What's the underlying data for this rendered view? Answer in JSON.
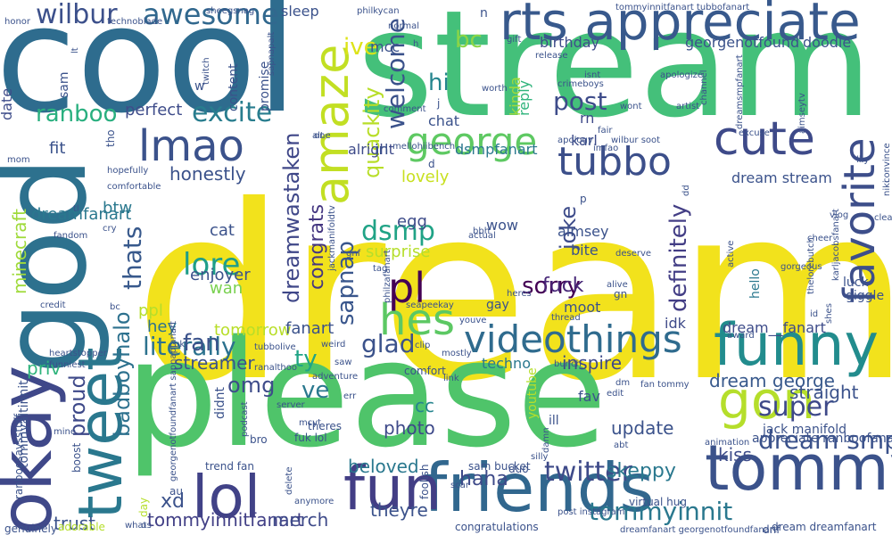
{
  "words": [
    {
      "text": "dream",
      "color": "#f2e21c"
    },
    {
      "text": "stream",
      "color": "#44c07a"
    },
    {
      "text": "cool",
      "color": "#2e6c8e"
    },
    {
      "text": "please",
      "color": "#4fc46a"
    },
    {
      "text": "god",
      "color": "#2d718e"
    },
    {
      "text": "rts appreciate",
      "color": "#38598c"
    },
    {
      "text": "funny",
      "color": "#228c8d"
    },
    {
      "text": "friends",
      "color": "#31678e"
    },
    {
      "text": "tommy",
      "color": "#3b528b"
    },
    {
      "text": "fun",
      "color": "#433e85"
    },
    {
      "text": "lol",
      "color": "#414287"
    },
    {
      "text": "okay",
      "color": "#3f4889"
    },
    {
      "text": "tweet",
      "color": "#2a788e"
    },
    {
      "text": "lmao",
      "color": "#3b528b"
    },
    {
      "text": "cute",
      "color": "#3e4a89"
    },
    {
      "text": "amaze",
      "color": "#c2df23"
    },
    {
      "text": "favorite",
      "color": "#3d4e8a"
    },
    {
      "text": "videothings",
      "color": "#2f6b8e"
    },
    {
      "text": "george",
      "color": "#5ec962"
    },
    {
      "text": "tubbo",
      "color": "#3c4f8a"
    },
    {
      "text": "gon",
      "color": "#b5de2b"
    },
    {
      "text": "hes",
      "color": "#5cc863"
    },
    {
      "text": "pl",
      "color": "#440154"
    },
    {
      "text": "awesome",
      "color": "#31688e"
    },
    {
      "text": "wilbur",
      "color": "#3c508b"
    },
    {
      "text": "welcome",
      "color": "#3b528b"
    },
    {
      "text": "excite",
      "color": "#287d8e"
    },
    {
      "text": "ranboo",
      "color": "#29af7f"
    },
    {
      "text": "dream smp",
      "color": "#3b528b"
    },
    {
      "text": "twitter",
      "color": "#3e4a89"
    },
    {
      "text": "tommyinnit",
      "color": "#2a788e"
    },
    {
      "text": "literally",
      "color": "#2c728e"
    },
    {
      "text": "super",
      "color": "#3e4989"
    },
    {
      "text": "glad",
      "color": "#3b528b"
    },
    {
      "text": "sorry",
      "color": "#440154"
    },
    {
      "text": "lore",
      "color": "#1f9e89"
    },
    {
      "text": "dsmp",
      "color": "#20a386"
    },
    {
      "text": "thats",
      "color": "#38598c"
    },
    {
      "text": "post",
      "color": "#3e4c8a"
    },
    {
      "text": "hi",
      "color": "#25858e"
    },
    {
      "text": "bc",
      "color": "#8bd646"
    },
    {
      "text": "ive",
      "color": "#dde318"
    },
    {
      "text": "fan",
      "color": "#3b528b"
    },
    {
      "text": "omg",
      "color": "#3e4c8a"
    },
    {
      "text": "ty",
      "color": "#20a486"
    },
    {
      "text": "ve",
      "color": "#2a788e"
    },
    {
      "text": "badboyhalo",
      "color": "#2d718e"
    },
    {
      "text": "proud",
      "color": "#3e4989"
    },
    {
      "text": "quackity",
      "color": "#b8de29"
    },
    {
      "text": "sapnap",
      "color": "#39568c"
    },
    {
      "text": "congrats",
      "color": "#453781"
    },
    {
      "text": "dreamwastaken",
      "color": "#3f4788"
    },
    {
      "text": "definitely",
      "color": "#433e85"
    },
    {
      "text": "joke",
      "color": "#3e4c8a"
    },
    {
      "text": "fuck",
      "color": "#482878"
    },
    {
      "text": "skeppy",
      "color": "#2a788e"
    },
    {
      "text": "haha",
      "color": "#3e4a89"
    },
    {
      "text": "beloved",
      "color": "#2a788e"
    },
    {
      "text": "tommyinnitfanart",
      "color": "#424086"
    },
    {
      "text": "merch",
      "color": "#3e4a89"
    },
    {
      "text": "theyre",
      "color": "#3b528b"
    },
    {
      "text": "trust",
      "color": "#3b528b"
    },
    {
      "text": "xd",
      "color": "#3b528b"
    },
    {
      "text": "kiss",
      "color": "#3e4c8a"
    },
    {
      "text": "update",
      "color": "#3b528b"
    },
    {
      "text": "photo",
      "color": "#3e4989"
    },
    {
      "text": "cc",
      "color": "#25848e"
    },
    {
      "text": "dream george",
      "color": "#38598c"
    },
    {
      "text": "straight",
      "color": "#3b528b"
    },
    {
      "text": "inspire",
      "color": "#3e4989"
    },
    {
      "text": "streamer",
      "color": "#3b528b"
    },
    {
      "text": "priv",
      "color": "#2fb47c"
    },
    {
      "text": "fit",
      "color": "#3b528b"
    },
    {
      "text": "minecraft",
      "color": "#9fda3a"
    },
    {
      "text": "dreamfanart",
      "color": "#2a788e"
    },
    {
      "text": "honestly",
      "color": "#3b528b"
    },
    {
      "text": "btw",
      "color": "#2a788e"
    },
    {
      "text": "perfect",
      "color": "#3e4c8a"
    },
    {
      "text": "cat",
      "color": "#3b528b"
    },
    {
      "text": "wan",
      "color": "#7ad151"
    },
    {
      "text": "enjoyer",
      "color": "#3b528b"
    },
    {
      "text": "ppl",
      "color": "#b5de2b"
    },
    {
      "text": "hey",
      "color": "#2c728e"
    },
    {
      "text": "tomorrow",
      "color": "#b8de29"
    },
    {
      "text": "fanart",
      "color": "#3b528b"
    },
    {
      "text": "surprise",
      "color": "#b5de2b"
    },
    {
      "text": "egg",
      "color": "#3e4c8a"
    },
    {
      "text": "lovely",
      "color": "#c8e020"
    },
    {
      "text": "dsmpfanart",
      "color": "#2a788e"
    },
    {
      "text": "alright",
      "color": "#3e4a89"
    },
    {
      "text": "irl",
      "color": "#3b528b"
    },
    {
      "text": "karl",
      "color": "#3e4c8a"
    },
    {
      "text": "chat",
      "color": "#3b528b"
    },
    {
      "text": "rn",
      "color": "#3e4989"
    },
    {
      "text": "kinda",
      "color": "#a0da39"
    },
    {
      "text": "reply",
      "color": "#2fb47c"
    },
    {
      "text": "mcc",
      "color": "#3b528b"
    },
    {
      "text": "birthday",
      "color": "#3e4c8a"
    },
    {
      "text": "georgenotfound",
      "color": "#3b528b"
    },
    {
      "text": "doodle",
      "color": "#3b528b"
    },
    {
      "text": "sleep",
      "color": "#3b528b"
    },
    {
      "text": "promise",
      "color": "#3b528b"
    },
    {
      "text": "content",
      "color": "#3b528b"
    },
    {
      "text": "date",
      "color": "#3e4c8a"
    },
    {
      "text": "sam",
      "color": "#3b528b"
    },
    {
      "text": "tho",
      "color": "#3b528b"
    },
    {
      "text": "aimsey",
      "color": "#3b528b"
    },
    {
      "text": "bite",
      "color": "#3b528b"
    },
    {
      "text": "dream stream",
      "color": "#3b528b"
    },
    {
      "text": "dream__fanart",
      "color": "#3e4c8a"
    },
    {
      "text": "luck",
      "color": "#3b528b"
    },
    {
      "text": "giggle",
      "color": "#3b528b"
    },
    {
      "text": "hello",
      "color": "#2a788e"
    },
    {
      "text": "idk",
      "color": "#3e4a89"
    },
    {
      "text": "moot",
      "color": "#3b528b"
    },
    {
      "text": "gay",
      "color": "#3b528b"
    },
    {
      "text": "techno",
      "color": "#2a788e"
    },
    {
      "text": "fav",
      "color": "#3b528b"
    },
    {
      "text": "jack manifold",
      "color": "#3b528b"
    },
    {
      "text": "appreciate ranboofanart",
      "color": "#3b528b"
    },
    {
      "text": "virtual hug",
      "color": "#3b528b"
    },
    {
      "text": "dream dreamfanart",
      "color": "#3b528b"
    },
    {
      "text": "dnf",
      "color": "#3b528b"
    },
    {
      "text": "congratulations",
      "color": "#3b528b"
    },
    {
      "text": "sam bucket",
      "color": "#3b528b"
    },
    {
      "text": "trend fan",
      "color": "#3b528b"
    },
    {
      "text": "tommyaltinnit",
      "color": "#3b528b"
    },
    {
      "text": "ranboosaysstuff",
      "color": "#3b528b"
    },
    {
      "text": "genuinely",
      "color": "#3b528b"
    },
    {
      "text": "funniest",
      "color": "#3b528b"
    },
    {
      "text": "mine",
      "color": "#3b528b"
    },
    {
      "text": "boost",
      "color": "#3b528b"
    },
    {
      "text": "adorable",
      "color": "#b5de2b"
    },
    {
      "text": "whats",
      "color": "#3b528b"
    },
    {
      "text": "day",
      "color": "#b5de2b"
    },
    {
      "text": "au",
      "color": "#3b528b"
    },
    {
      "text": "bro",
      "color": "#3b528b"
    },
    {
      "text": "youtube",
      "color": "#b5de2b"
    },
    {
      "text": "ill",
      "color": "#3b528b"
    },
    {
      "text": "duo",
      "color": "#3b528b"
    },
    {
      "text": "scar",
      "color": "#3b528b"
    },
    {
      "text": "server",
      "color": "#3b528b"
    },
    {
      "text": "theres",
      "color": "#3b528b"
    },
    {
      "text": "fuk lol",
      "color": "#3b528b"
    },
    {
      "text": "comfort",
      "color": "#3b528b"
    },
    {
      "text": "didnt",
      "color": "#3b528b"
    },
    {
      "text": "tubbolive",
      "color": "#3b528b"
    },
    {
      "text": "heartstopper",
      "color": "#3b528b"
    },
    {
      "text": "credit",
      "color": "#3b528b"
    },
    {
      "text": "fandom",
      "color": "#3b528b"
    },
    {
      "text": "cry",
      "color": "#3b528b"
    },
    {
      "text": "tl",
      "color": "#3b528b"
    },
    {
      "text": "mom",
      "color": "#3b528b"
    },
    {
      "text": "hopefully",
      "color": "#3b528b"
    },
    {
      "text": "comfortable",
      "color": "#3b528b"
    },
    {
      "text": "technoblade",
      "color": "#3b528b"
    },
    {
      "text": "sheegsnag",
      "color": "#3b528b"
    },
    {
      "text": "philkycan",
      "color": "#3b528b"
    },
    {
      "text": "tommyinnitfanart tubbofanart",
      "color": "#3b528b"
    },
    {
      "text": "honor",
      "color": "#3b528b"
    },
    {
      "text": "lt",
      "color": "#3b528b"
    },
    {
      "text": "twitch",
      "color": "#3b528b"
    },
    {
      "text": "sapnapalt",
      "color": "#3b528b"
    },
    {
      "text": "normal",
      "color": "#3b528b"
    },
    {
      "text": "gift",
      "color": "#3b528b"
    },
    {
      "text": "isnt",
      "color": "#3b528b"
    },
    {
      "text": "worth",
      "color": "#3b528b"
    },
    {
      "text": "crimeboys",
      "color": "#3b528b"
    },
    {
      "text": "wont",
      "color": "#3b528b"
    },
    {
      "text": "apologize",
      "color": "#3b528b"
    },
    {
      "text": "artist",
      "color": "#3b528b"
    },
    {
      "text": "excuse",
      "color": "#3b528b"
    },
    {
      "text": "wilbur soot",
      "color": "#3b528b"
    },
    {
      "text": "seapeekay",
      "color": "#3b528b"
    },
    {
      "text": "alive",
      "color": "#3b528b"
    },
    {
      "text": "deserve",
      "color": "#3b528b"
    },
    {
      "text": "active",
      "color": "#3b528b"
    },
    {
      "text": "vlog",
      "color": "#3b528b"
    },
    {
      "text": "award",
      "color": "#3b528b"
    },
    {
      "text": "thread",
      "color": "#3b528b"
    },
    {
      "text": "clip",
      "color": "#3b528b"
    },
    {
      "text": "mostly",
      "color": "#3b528b"
    },
    {
      "text": "link",
      "color": "#3b528b"
    },
    {
      "text": "edit",
      "color": "#3b528b"
    },
    {
      "text": "abt",
      "color": "#3b528b"
    },
    {
      "text": "animation",
      "color": "#3b528b"
    },
    {
      "text": "silly",
      "color": "#3b528b"
    },
    {
      "text": "post instagram",
      "color": "#3b528b"
    },
    {
      "text": "delete",
      "color": "#3b528b"
    },
    {
      "text": "anymore",
      "color": "#3b528b"
    },
    {
      "text": "mcyt",
      "color": "#3b528b"
    },
    {
      "text": "foolish",
      "color": "#3b528b"
    },
    {
      "text": "ranalthoo",
      "color": "#3b528b"
    },
    {
      "text": "weird",
      "color": "#3b528b"
    },
    {
      "text": "saw",
      "color": "#3b528b"
    },
    {
      "text": "uk",
      "color": "#3b528b"
    },
    {
      "text": "shes",
      "color": "#3b528b"
    },
    {
      "text": "karljacobsfanart",
      "color": "#3b528b"
    },
    {
      "text": "gorgeous",
      "color": "#3b528b"
    },
    {
      "text": "cheer",
      "color": "#3b528b"
    },
    {
      "text": "clean",
      "color": "#3b528b"
    },
    {
      "text": "niki",
      "color": "#3b528b"
    },
    {
      "text": "convince",
      "color": "#3b528b"
    },
    {
      "text": "aimseytv",
      "color": "#3b528b"
    },
    {
      "text": "dreamsmpfanart",
      "color": "#3b528b"
    },
    {
      "text": "fair",
      "color": "#3b528b"
    },
    {
      "text": "channel",
      "color": "#3b528b"
    },
    {
      "text": "release",
      "color": "#3b528b"
    },
    {
      "text": "comment",
      "color": "#3b528b"
    },
    {
      "text": "one",
      "color": "#3b528b"
    },
    {
      "text": "alt",
      "color": "#3b528b"
    },
    {
      "text": "mellohiibench",
      "color": "#3b528b"
    },
    {
      "text": "apology",
      "color": "#3b528b"
    },
    {
      "text": "imfao",
      "color": "#3b528b"
    },
    {
      "text": "gnf",
      "color": "#3b528b"
    },
    {
      "text": "tag",
      "color": "#3b528b"
    },
    {
      "text": "bbh",
      "color": "#3b528b"
    },
    {
      "text": "actual",
      "color": "#3b528b"
    },
    {
      "text": "heres",
      "color": "#3b528b"
    },
    {
      "text": "youve",
      "color": "#3b528b"
    },
    {
      "text": "jackmanifoldtv",
      "color": "#3b528b"
    },
    {
      "text": "philzafanart",
      "color": "#3b528b"
    },
    {
      "text": "wow",
      "color": "#3b528b"
    },
    {
      "text": "georgenotfoundfanart sapnapfanart",
      "color": "#3b528b"
    },
    {
      "text": "dreamfanart georgenotfoundfanart",
      "color": "#3b528b"
    },
    {
      "text": "podcast",
      "color": "#3b528b"
    },
    {
      "text": "bunch",
      "color": "#3b528b"
    },
    {
      "text": "fan tommy",
      "color": "#3b528b"
    },
    {
      "text": "dm",
      "color": "#3b528b"
    },
    {
      "text": "dd",
      "color": "#3b528b"
    },
    {
      "text": "id",
      "color": "#3b528b"
    },
    {
      "text": "damn",
      "color": "#3b528b"
    },
    {
      "text": "bc",
      "color": "#3b528b"
    },
    {
      "text": "o",
      "color": "#3b528b"
    },
    {
      "text": "n",
      "color": "#3b528b"
    },
    {
      "text": "h",
      "color": "#3b528b"
    },
    {
      "text": "d",
      "color": "#3b528b"
    },
    {
      "text": "w",
      "color": "#3b528b"
    },
    {
      "text": "j",
      "color": "#3b528b"
    },
    {
      "text": "p",
      "color": "#3b528b"
    },
    {
      "text": "gn",
      "color": "#3b528b"
    },
    {
      "text": "adventure",
      "color": "#3b528b"
    },
    {
      "text": "thelorebutch",
      "color": "#3b528b"
    },
    {
      "text": "lily",
      "color": "#3b528b"
    },
    {
      "text": "err",
      "color": "#3b528b"
    }
  ]
}
